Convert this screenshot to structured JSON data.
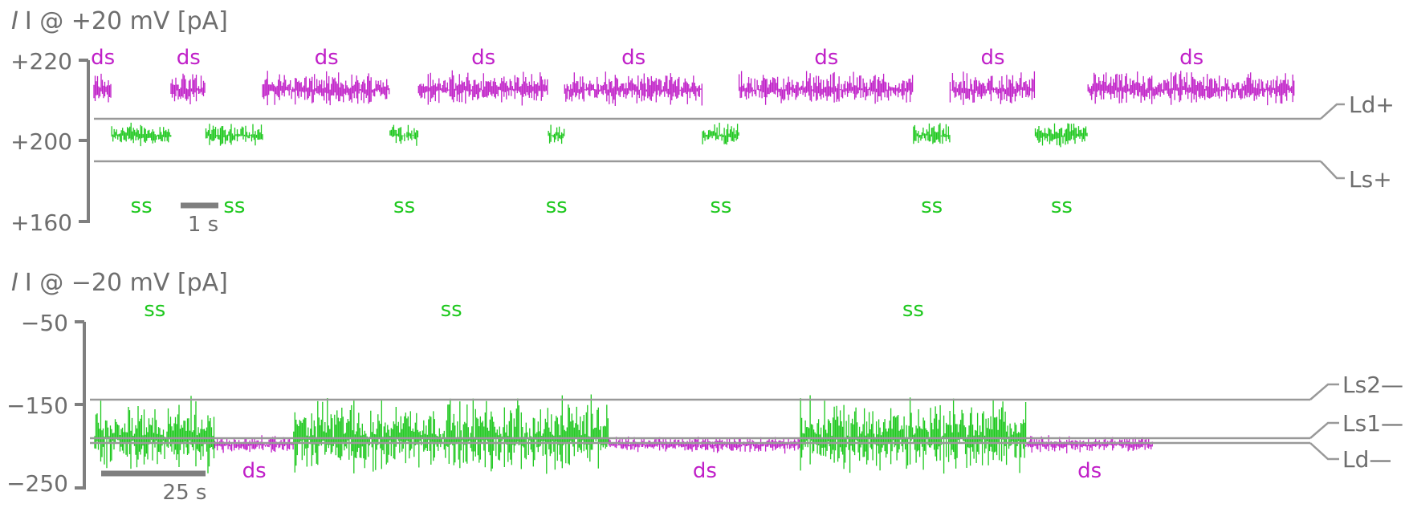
{
  "colors": {
    "ds": "#c020c8",
    "ss": "#1ec81e",
    "axis": "#7f7f7f",
    "text": "#6e6e6e"
  },
  "chart_data": [
    {
      "type": "line",
      "title": "I @ +20 mV [pA]",
      "ylim": [
        160,
        220
      ],
      "yticks": [
        {
          "value": 220,
          "label": "+220"
        },
        {
          "value": 200,
          "label": "+200"
        },
        {
          "value": 160,
          "label": "+160"
        }
      ],
      "time_range_s": [
        0,
        14.8
      ],
      "scale_bar": {
        "length_s": 1,
        "label": "1 s"
      },
      "levels": [
        {
          "name": "Ld+",
          "value": 210.5
        },
        {
          "name": "Ls+",
          "value": 195.0
        }
      ],
      "series": [
        {
          "name": "ds",
          "mean": 209,
          "amp": 7
        },
        {
          "name": "ss",
          "mean": 192,
          "amp": 5
        }
      ],
      "segments": [
        {
          "state": "ds",
          "t": [
            0.0,
            0.22
          ],
          "label": "ds"
        },
        {
          "state": "ss",
          "t": [
            0.22,
            0.95
          ],
          "label": "ss"
        },
        {
          "state": "ds",
          "t": [
            0.95,
            1.38
          ],
          "label": "ds"
        },
        {
          "state": "ss",
          "t": [
            1.38,
            2.08
          ],
          "label": "ss"
        },
        {
          "state": "ds",
          "t": [
            2.08,
            3.65
          ],
          "label": "ds"
        },
        {
          "state": "ss",
          "t": [
            3.65,
            4.0
          ],
          "label": "ss"
        },
        {
          "state": "ds",
          "t": [
            4.0,
            5.6
          ],
          "label": "ds"
        },
        {
          "state": "ss",
          "t": [
            5.6,
            5.8
          ],
          "label": "ss"
        },
        {
          "state": "ds",
          "t": [
            5.8,
            7.5
          ],
          "label": "ds"
        },
        {
          "state": "ss",
          "t": [
            7.5,
            7.95
          ],
          "label": "ss"
        },
        {
          "state": "ds",
          "t": [
            7.95,
            10.1
          ],
          "label": "ds"
        },
        {
          "state": "ss",
          "t": [
            10.1,
            10.55
          ],
          "label": "ss"
        },
        {
          "state": "ds",
          "t": [
            10.55,
            11.6
          ],
          "label": "ds"
        },
        {
          "state": "ss",
          "t": [
            11.6,
            12.25
          ],
          "label": "ss"
        },
        {
          "state": "ds",
          "t": [
            12.25,
            14.8
          ],
          "label": "ds"
        }
      ]
    },
    {
      "type": "line",
      "title": "I @ −20 mV [pA]",
      "ylim": [
        -250,
        -50
      ],
      "yticks": [
        {
          "value": -50,
          "label": "−50"
        },
        {
          "value": -150,
          "label": "−150"
        },
        {
          "value": -250,
          "label": "−250"
        }
      ],
      "time_range_s": [
        0,
        159
      ],
      "scale_bar": {
        "length_s": 25,
        "label": "25 s"
      },
      "levels": [
        {
          "name": "Ls2—",
          "value": -141
        },
        {
          "name": "Ls1—",
          "value": -189
        },
        {
          "name": "Ld—",
          "value": -196
        }
      ],
      "series": [
        {
          "name": "ss",
          "mean": -190,
          "amp": 50
        },
        {
          "name": "ds",
          "mean": -198,
          "amp": 12
        }
      ],
      "segments": [
        {
          "state": "ss",
          "t": [
            0,
            16
          ],
          "label": "ss"
        },
        {
          "state": "ds",
          "t": [
            16,
            26.5
          ],
          "label": "ds"
        },
        {
          "state": "ss",
          "t": [
            26.5,
            68.5
          ],
          "label": "ss"
        },
        {
          "state": "ds",
          "t": [
            68.5,
            94
          ],
          "label": "ds"
        },
        {
          "state": "ss",
          "t": [
            94,
            124
          ],
          "label": "ss"
        },
        {
          "state": "ds",
          "t": [
            124,
            141
          ],
          "label": "ds"
        }
      ]
    }
  ]
}
